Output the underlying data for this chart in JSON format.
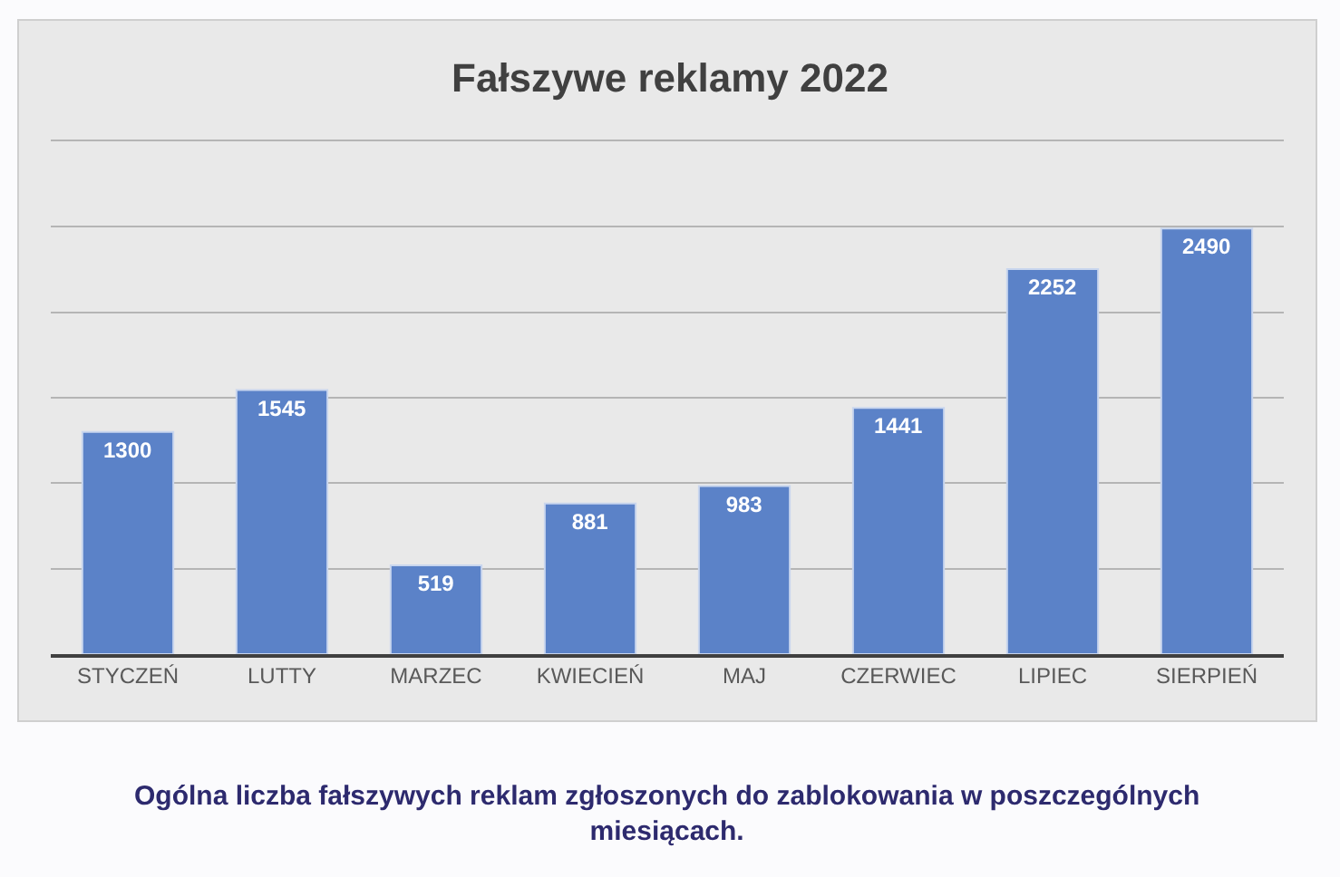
{
  "chart_data": {
    "type": "bar",
    "title": "Fałszywe reklamy 2022",
    "categories": [
      "STYCZEŃ",
      "LUTTY",
      "MARZEC",
      "KWIECIEŃ",
      "MAJ",
      "CZERWIEC",
      "LIPIEC",
      "SIERPIEŃ"
    ],
    "values": [
      1300,
      1545,
      519,
      881,
      983,
      1441,
      2252,
      2490
    ],
    "color": "#5b82c8",
    "data_labels": true,
    "ylim": [
      0,
      3000
    ],
    "yticks": [
      {
        "value": 0,
        "label": null
      },
      {
        "value": 500,
        "label": null
      },
      {
        "value": 1000,
        "label": null
      },
      {
        "value": 1500,
        "label": null
      },
      {
        "value": 2000,
        "label": null
      },
      {
        "value": 2500,
        "label": null
      },
      {
        "value": 3000,
        "label": null
      }
    ],
    "grid": "y",
    "tick_labels": "x",
    "annotations": [
      "Ogólna liczba fałszywych reklam zgłoszonych do zablokowania w poszczególnych miesiącach."
    ]
  }
}
